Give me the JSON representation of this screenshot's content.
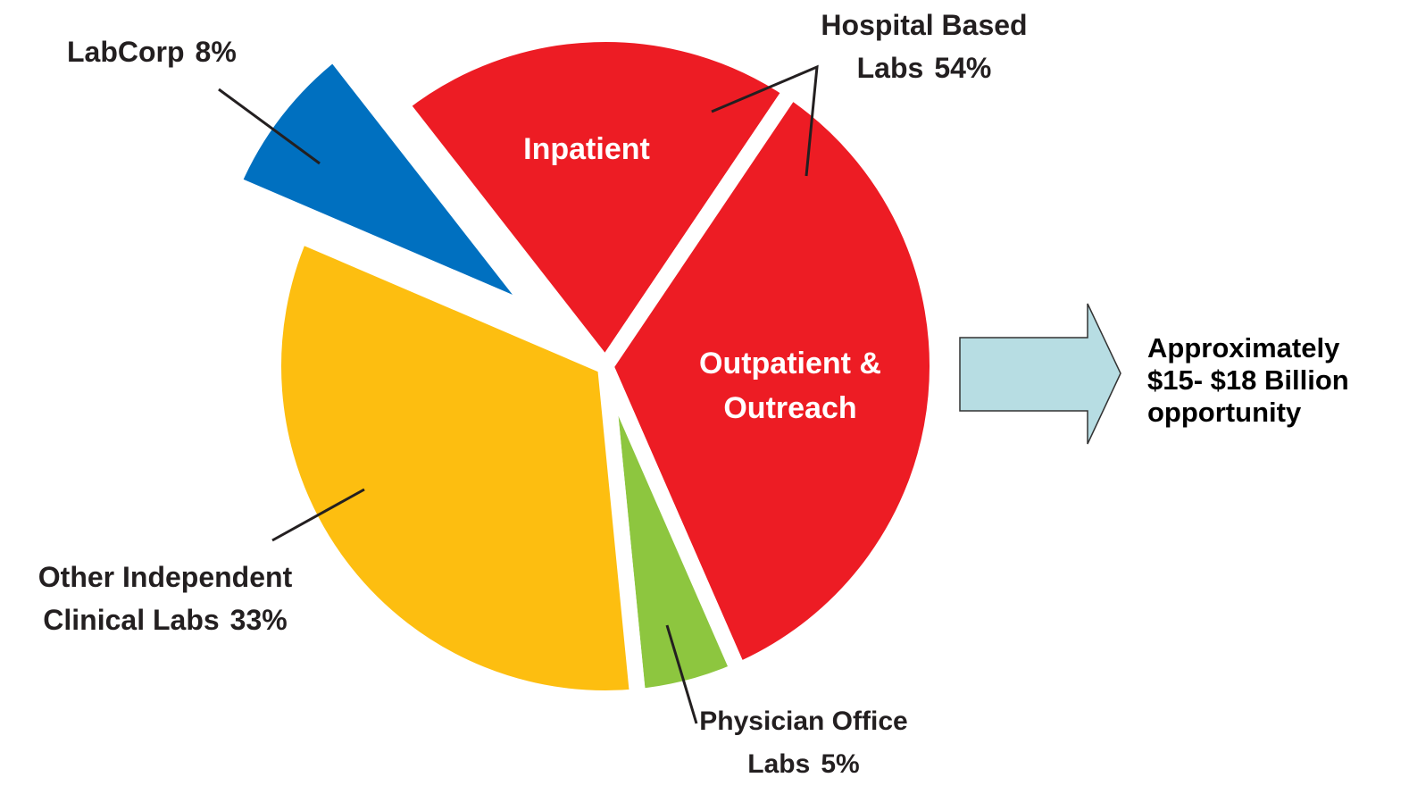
{
  "chart_data": {
    "type": "pie",
    "categories": [
      "Hospital Based Labs",
      "Physician Office Labs",
      "Other Independent Clinical Labs",
      "LabCorp"
    ],
    "values": [
      54,
      5,
      33,
      8
    ],
    "value_labels": [
      "54%",
      "5%",
      "33%",
      "8%"
    ],
    "colors": [
      "#ed1c24",
      "#8dc63f",
      "#fdbe10",
      "#0070c0"
    ],
    "sub_categories": [
      "Inpatient",
      "Outpatient & Outreach"
    ],
    "sub_values": [
      20,
      34
    ],
    "annotation": "Approximately $15- $18 Billion opportunity"
  }
}
